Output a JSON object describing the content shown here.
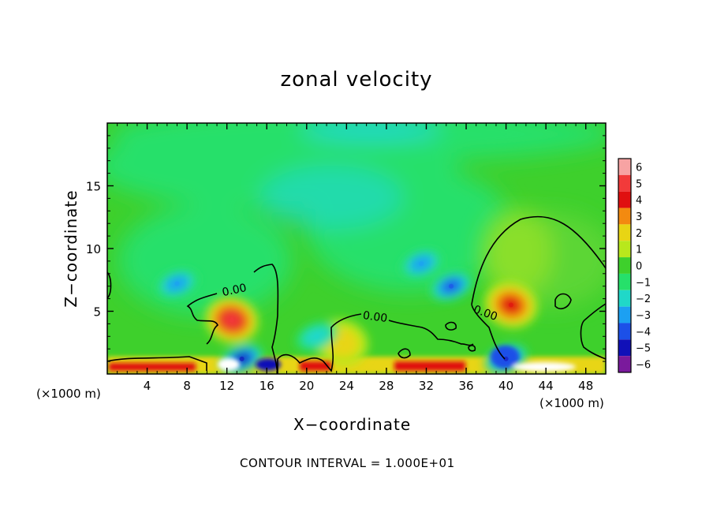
{
  "chart_data": {
    "type": "heatmap",
    "title": "zonal velocity",
    "xlabel": "X−coordinate",
    "ylabel": "Z−coordinate",
    "x_unit_left": "(×1000 m)",
    "x_unit_right": "(×1000 m)",
    "footer": "CONTOUR INTERVAL = 1.000E+01",
    "xlim": [
      0,
      50
    ],
    "ylim": [
      0,
      20
    ],
    "x_ticks": [
      4,
      8,
      12,
      16,
      20,
      24,
      28,
      32,
      36,
      40,
      44,
      48
    ],
    "x_tick_labels": [
      "4",
      "8",
      "12",
      "16",
      "20",
      "24",
      "28",
      "32",
      "36",
      "40",
      "44",
      "48"
    ],
    "y_ticks": [
      5,
      10,
      15
    ],
    "y_tick_labels": [
      "5",
      "10",
      "15"
    ],
    "colorbar": {
      "levels": [
        6,
        5,
        4,
        3,
        2,
        1,
        0,
        -1,
        -2,
        -3,
        -4,
        -5,
        -6
      ],
      "labels": [
        "6",
        "5",
        "4",
        "3",
        "2",
        "1",
        "0",
        "−1",
        "−2",
        "−3",
        "−4",
        "−5",
        "−6"
      ],
      "colors": [
        "#f7a3a3",
        "#f23a3a",
        "#e01010",
        "#f38a10",
        "#e8d514",
        "#b8e81c",
        "#3ed02c",
        "#26e06a",
        "#20d8c8",
        "#1ca0f2",
        "#1c50e8",
        "#1010b8",
        "#7a1a9c"
      ]
    },
    "background_level": 0,
    "contour_label": "0.00",
    "contour_labels": [
      "0.00",
      "0.00",
      "0.00"
    ],
    "features": [
      {
        "kind": "positive",
        "x": 12.5,
        "z": 4.3,
        "value": 5
      },
      {
        "kind": "positive",
        "x": 40.5,
        "z": 5.5,
        "value": 4
      },
      {
        "kind": "positive",
        "x": 23.5,
        "z": 2.5,
        "value": 2
      },
      {
        "kind": "negative",
        "x": 7.0,
        "z": 7.2,
        "value": -3
      },
      {
        "kind": "negative",
        "x": 31.5,
        "z": 8.8,
        "value": -3
      },
      {
        "kind": "negative",
        "x": 34.5,
        "z": 7.0,
        "value": -4
      },
      {
        "kind": "negative",
        "x": 13.5,
        "z": 1.2,
        "value": -5
      },
      {
        "kind": "negative",
        "x": 40.0,
        "z": 1.2,
        "value": -5
      },
      {
        "kind": "negative",
        "x": 21.0,
        "z": 3.0,
        "value": -2
      }
    ]
  }
}
